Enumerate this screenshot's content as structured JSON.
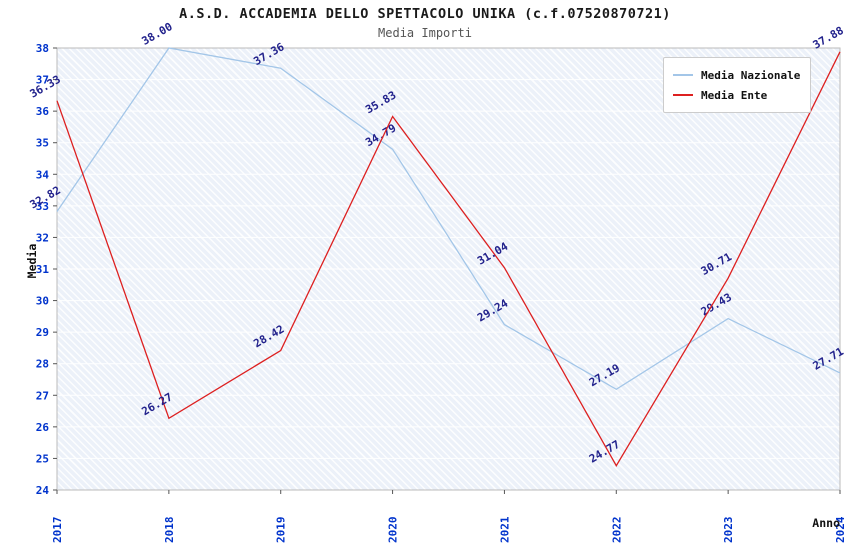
{
  "chart_data": {
    "type": "line",
    "title": "A.S.D. ACCADEMIA DELLO SPETTACOLO UNIKA (c.f.07520870721)",
    "subtitle": "Media Importi",
    "xlabel": "Anno",
    "ylabel": "Media",
    "categories": [
      "2017",
      "2018",
      "2019",
      "2020",
      "2021",
      "2022",
      "2023",
      "2024"
    ],
    "series": [
      {
        "name": "Media Nazionale",
        "color": "#a3c6e8",
        "values": [
          32.82,
          38.0,
          37.36,
          34.79,
          29.24,
          27.19,
          29.43,
          27.71
        ]
      },
      {
        "name": "Media Ente",
        "color": "#dd2020",
        "values": [
          36.33,
          26.27,
          28.42,
          35.83,
          31.04,
          24.77,
          30.71,
          37.88
        ]
      }
    ],
    "ylim": [
      24,
      38
    ],
    "ytick_step": 1,
    "grid": "horizontal-white",
    "legend_position": "top-right",
    "tick_label_color": "#0033cc",
    "data_label_color": "#22228c",
    "axis_frame_color": "#bbbbbb"
  }
}
